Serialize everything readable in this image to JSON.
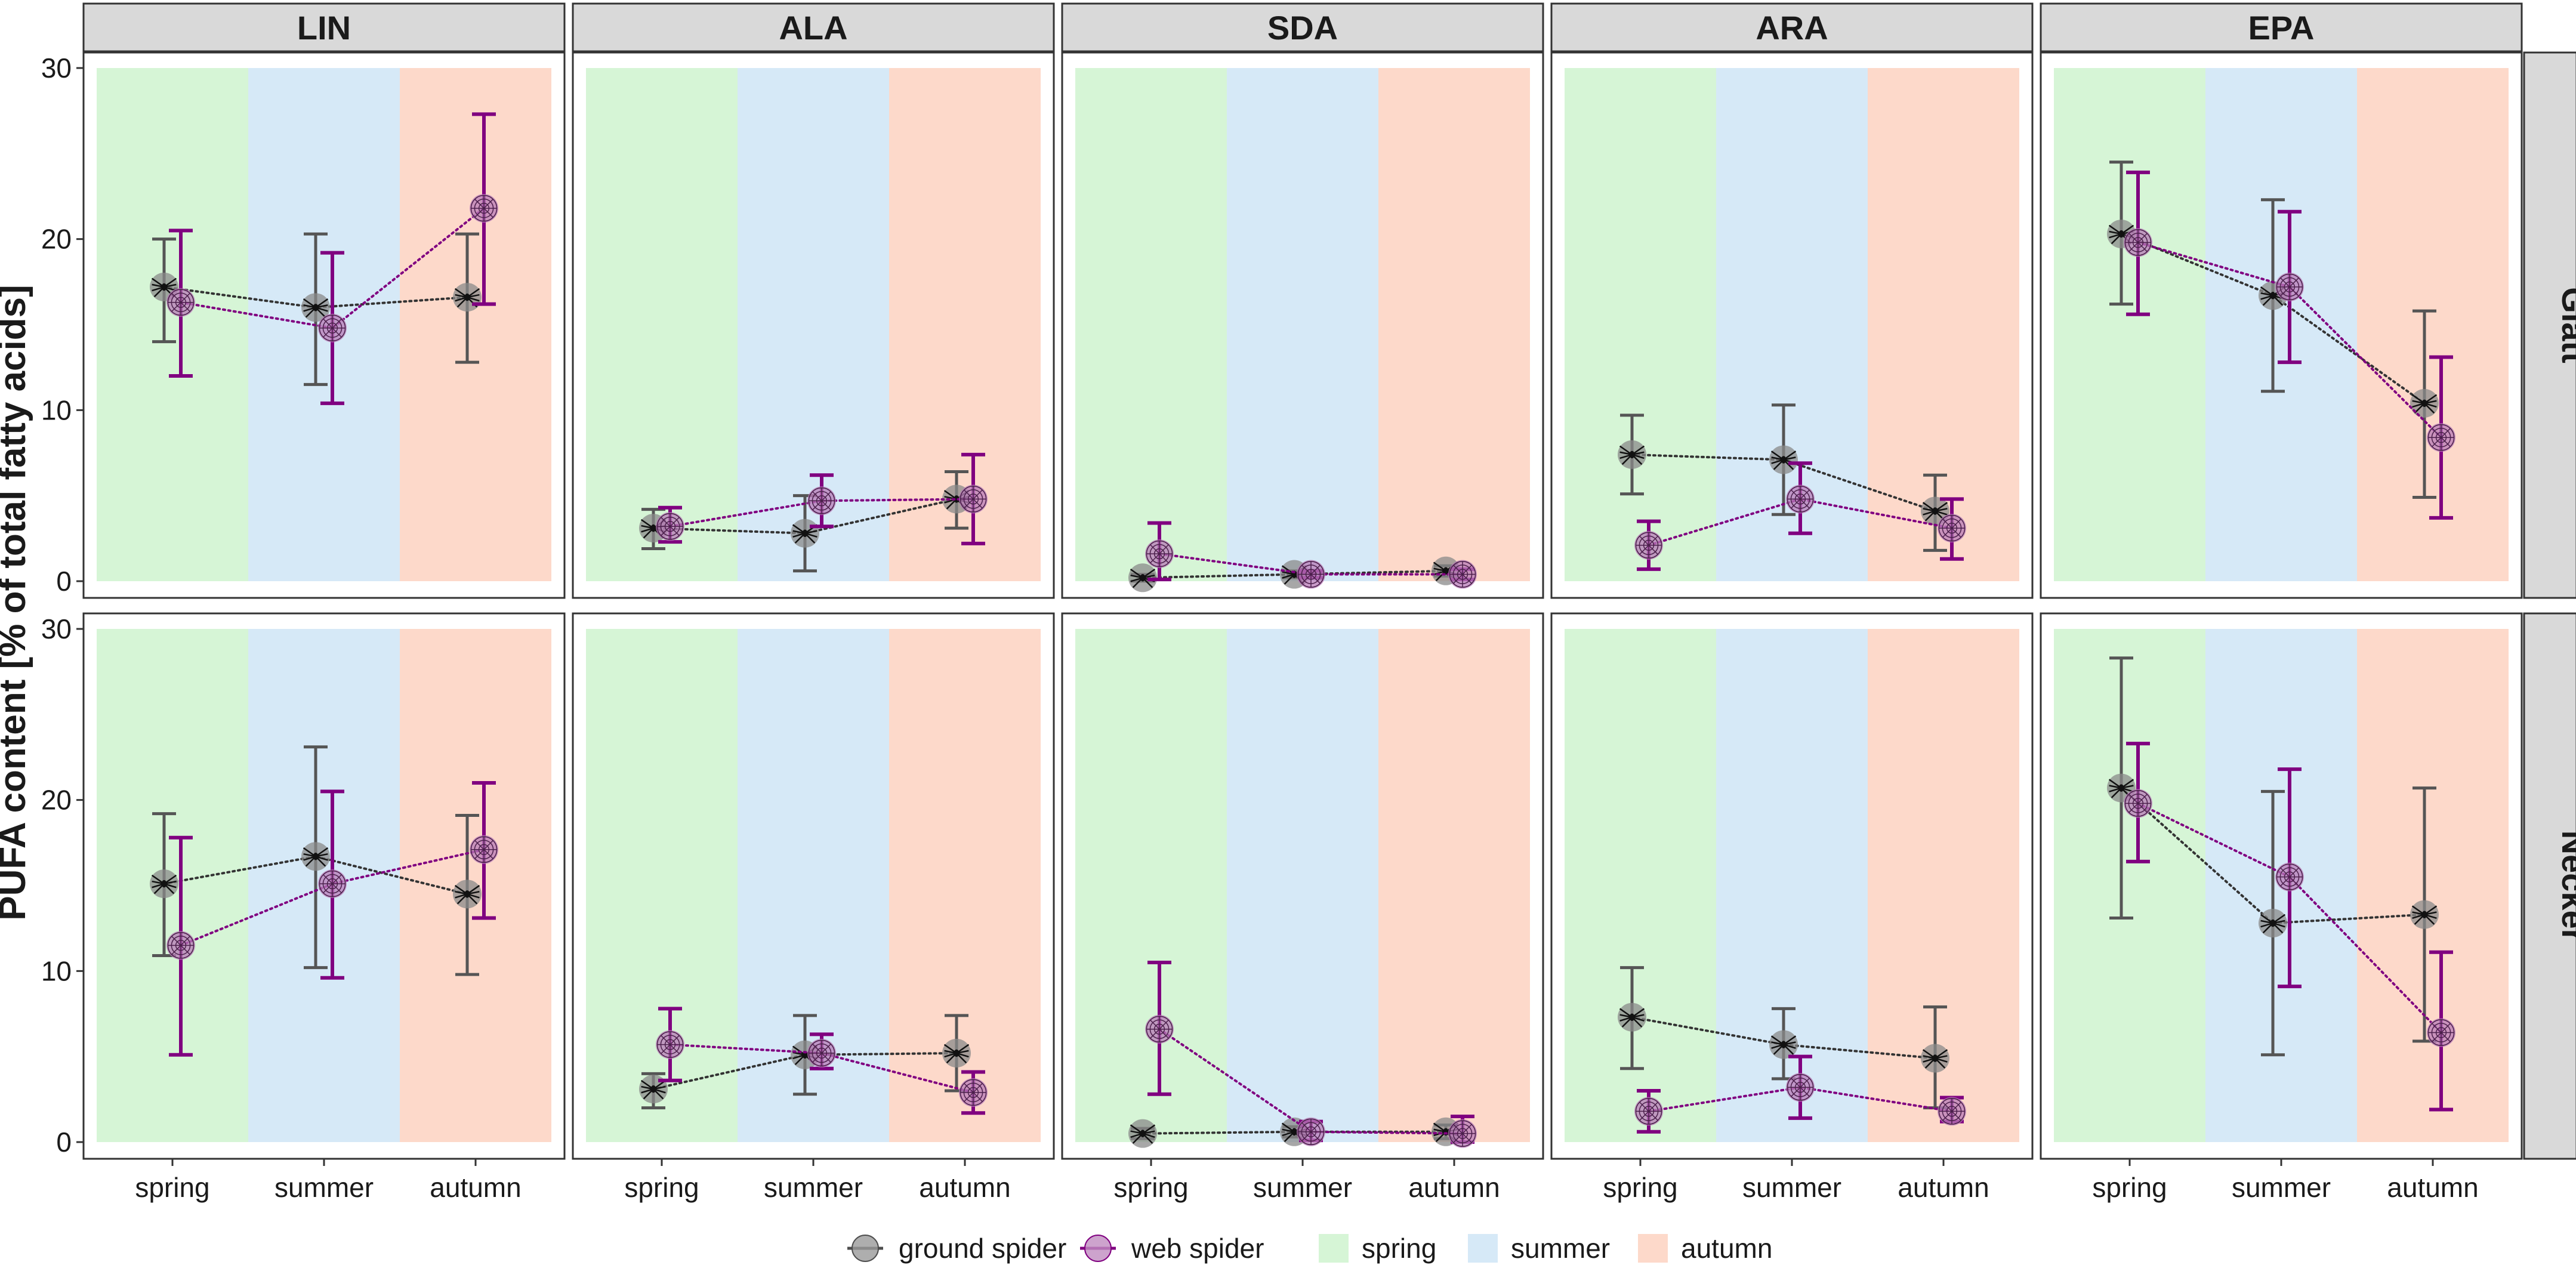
{
  "chart_data": {
    "type": "scatter",
    "ylabel": "PUFA content [% of total fatty acids]",
    "xlabel": "",
    "categories": [
      "spring",
      "summer",
      "autumn"
    ],
    "ylim": [
      0,
      30
    ],
    "yticks": [
      0,
      10,
      20,
      30
    ],
    "columns": [
      "LIN",
      "ALA",
      "SDA",
      "ARA",
      "EPA"
    ],
    "rows": [
      "Glatt",
      "Necker"
    ],
    "series_names": [
      "ground spider",
      "web spider"
    ],
    "series_colors": {
      "ground spider": "#4d4d4d",
      "web spider": "#800080"
    },
    "background_bands": [
      {
        "label": "spring",
        "color": "#d6f5d6"
      },
      {
        "label": "summer",
        "color": "#d6e9f7"
      },
      {
        "label": "autumn",
        "color": "#fdd9ca"
      }
    ],
    "panels": [
      {
        "row": "Glatt",
        "col": "LIN",
        "ground": {
          "mean": [
            17.2,
            16.0,
            16.6
          ],
          "lo": [
            14.0,
            11.5,
            12.8
          ],
          "hi": [
            20.0,
            20.3,
            20.3
          ]
        },
        "web": {
          "mean": [
            16.3,
            14.8,
            21.8
          ],
          "lo": [
            12.0,
            10.4,
            16.2
          ],
          "hi": [
            20.5,
            19.2,
            27.3
          ]
        }
      },
      {
        "row": "Glatt",
        "col": "ALA",
        "ground": {
          "mean": [
            3.1,
            2.8,
            4.8
          ],
          "lo": [
            1.9,
            0.6,
            3.1
          ],
          "hi": [
            4.2,
            5.0,
            6.4
          ]
        },
        "web": {
          "mean": [
            3.2,
            4.7,
            4.8
          ],
          "lo": [
            2.3,
            3.2,
            2.2
          ],
          "hi": [
            4.3,
            6.2,
            7.4
          ]
        }
      },
      {
        "row": "Glatt",
        "col": "SDA",
        "ground": {
          "mean": [
            0.2,
            0.4,
            0.6
          ],
          "lo": [
            0.0,
            0.2,
            0.3
          ],
          "hi": [
            0.4,
            0.6,
            0.9
          ]
        },
        "web": {
          "mean": [
            1.6,
            0.4,
            0.4
          ],
          "lo": [
            0.1,
            0.2,
            0.1
          ],
          "hi": [
            3.4,
            0.6,
            0.7
          ]
        }
      },
      {
        "row": "Glatt",
        "col": "ARA",
        "ground": {
          "mean": [
            7.4,
            7.1,
            4.1
          ],
          "lo": [
            5.1,
            3.9,
            1.8
          ],
          "hi": [
            9.7,
            10.3,
            6.2
          ]
        },
        "web": {
          "mean": [
            2.1,
            4.8,
            3.1
          ],
          "lo": [
            0.7,
            2.8,
            1.3
          ],
          "hi": [
            3.5,
            6.9,
            4.8
          ]
        }
      },
      {
        "row": "Glatt",
        "col": "EPA",
        "ground": {
          "mean": [
            20.3,
            16.7,
            10.4
          ],
          "lo": [
            16.2,
            11.1,
            4.9
          ],
          "hi": [
            24.5,
            22.3,
            15.8
          ]
        },
        "web": {
          "mean": [
            19.8,
            17.2,
            8.4
          ],
          "lo": [
            15.6,
            12.8,
            3.7
          ],
          "hi": [
            23.9,
            21.6,
            13.1
          ]
        }
      },
      {
        "row": "Necker",
        "col": "LIN",
        "ground": {
          "mean": [
            15.1,
            16.7,
            14.5
          ],
          "lo": [
            10.9,
            10.2,
            9.8
          ],
          "hi": [
            19.2,
            23.1,
            19.1
          ]
        },
        "web": {
          "mean": [
            11.5,
            15.1,
            17.1
          ],
          "lo": [
            5.1,
            9.6,
            13.1
          ],
          "hi": [
            17.8,
            20.5,
            21.0
          ]
        }
      },
      {
        "row": "Necker",
        "col": "ALA",
        "ground": {
          "mean": [
            3.1,
            5.1,
            5.2
          ],
          "lo": [
            2.0,
            2.8,
            3.0
          ],
          "hi": [
            4.0,
            7.4,
            7.4
          ]
        },
        "web": {
          "mean": [
            5.7,
            5.2,
            2.9
          ],
          "lo": [
            3.6,
            4.3,
            1.7
          ],
          "hi": [
            7.8,
            6.3,
            4.1
          ]
        }
      },
      {
        "row": "Necker",
        "col": "SDA",
        "ground": {
          "mean": [
            0.5,
            0.6,
            0.6
          ],
          "lo": [
            0.2,
            0.3,
            0.2
          ],
          "hi": [
            0.8,
            0.9,
            1.0
          ]
        },
        "web": {
          "mean": [
            6.6,
            0.6,
            0.5
          ],
          "lo": [
            2.8,
            0.1,
            0.0
          ],
          "hi": [
            10.5,
            1.2,
            1.5
          ]
        }
      },
      {
        "row": "Necker",
        "col": "ARA",
        "ground": {
          "mean": [
            7.3,
            5.7,
            4.9
          ],
          "lo": [
            4.3,
            3.7,
            2.0
          ],
          "hi": [
            10.2,
            7.8,
            7.9
          ]
        },
        "web": {
          "mean": [
            1.8,
            3.2,
            1.8
          ],
          "lo": [
            0.6,
            1.4,
            1.2
          ],
          "hi": [
            3.0,
            5.0,
            2.6
          ]
        }
      },
      {
        "row": "Necker",
        "col": "EPA",
        "ground": {
          "mean": [
            20.7,
            12.8,
            13.3
          ],
          "lo": [
            13.1,
            5.1,
            5.9
          ],
          "hi": [
            28.3,
            20.5,
            20.7
          ]
        },
        "web": {
          "mean": [
            19.8,
            15.5,
            6.4
          ],
          "lo": [
            16.4,
            9.1,
            1.9
          ],
          "hi": [
            23.3,
            21.8,
            11.1
          ]
        }
      }
    ],
    "legend": {
      "items": [
        {
          "label": "ground spider",
          "kind": "series",
          "color": "#4d4d4d",
          "fill": "#9a9a9a"
        },
        {
          "label": "web spider",
          "kind": "series",
          "color": "#800080",
          "fill": "#c08cc0"
        },
        {
          "label": "spring",
          "kind": "band",
          "color": "#d6f5d6"
        },
        {
          "label": "summer",
          "kind": "band",
          "color": "#d6e9f7"
        },
        {
          "label": "autumn",
          "kind": "band",
          "color": "#fdd9ca"
        }
      ],
      "position": "bottom"
    }
  }
}
